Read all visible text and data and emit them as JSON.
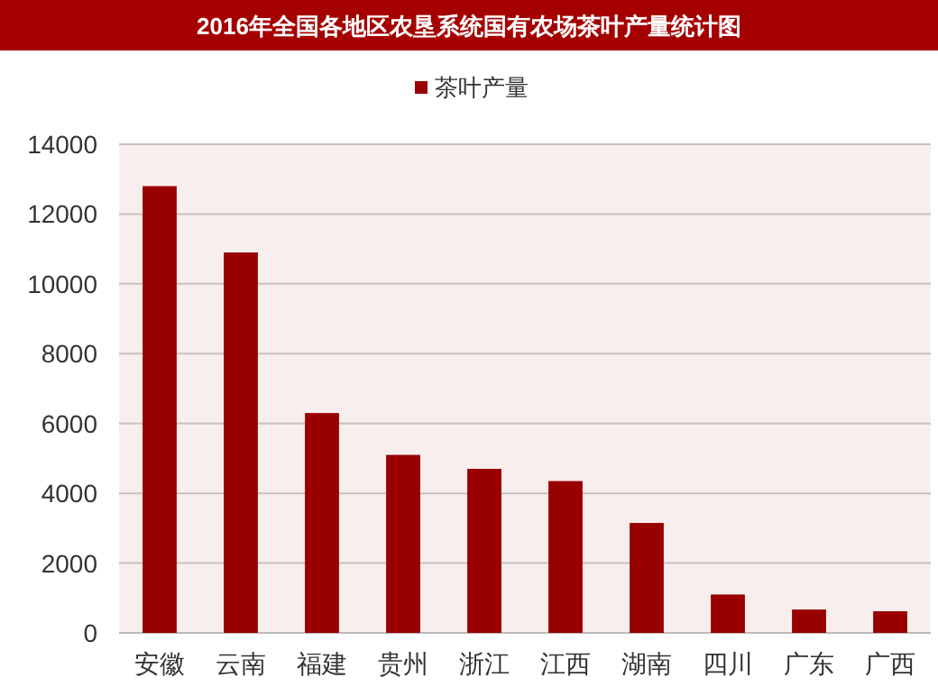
{
  "chart_data": {
    "type": "bar",
    "title": "2016年全国各地区农垦系统国有农场茶叶产量统计图",
    "categories": [
      "安徽",
      "云南",
      "福建",
      "贵州",
      "浙江",
      "江西",
      "湖南",
      "四川",
      "广东",
      "广西"
    ],
    "series": [
      {
        "name": "茶叶产量",
        "color": "#990000",
        "values": [
          12800,
          10900,
          6300,
          5100,
          4700,
          4350,
          3150,
          1100,
          670,
          620
        ]
      }
    ],
    "ylim": [
      0,
      14000
    ],
    "yticks": [
      0,
      2000,
      4000,
      6000,
      8000,
      10000,
      12000,
      14000
    ],
    "grid": "y",
    "legend": "top"
  }
}
